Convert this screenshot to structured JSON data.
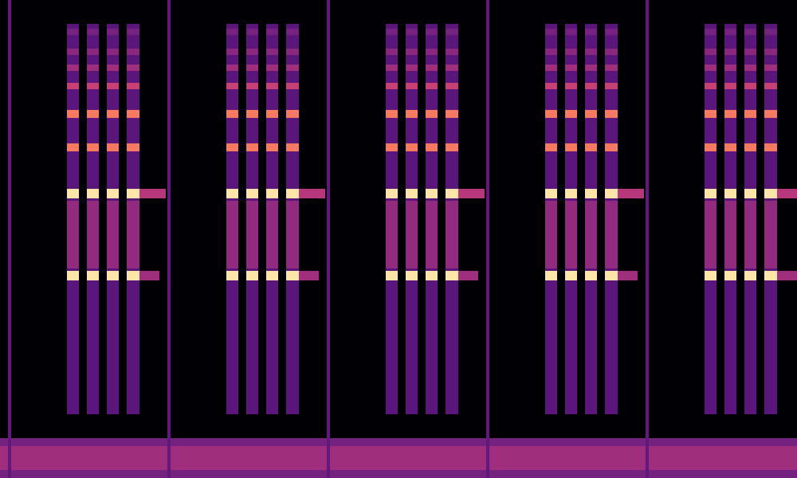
{
  "chart_data": {
    "type": "heatmap",
    "xlim": [
      0,
      1000
    ],
    "ylim": [
      0,
      600
    ],
    "zlim": [
      0,
      1
    ],
    "tick_labels": false,
    "grid": false,
    "cells": [
      [
        0,
        1000,
        0,
        50,
        0.35
      ],
      [
        0,
        1000,
        10,
        40,
        0.45
      ],
      [
        10,
        14,
        0,
        600,
        0.3
      ],
      [
        210,
        214,
        0,
        600,
        0.3
      ],
      [
        410,
        414,
        0,
        600,
        0.3
      ],
      [
        610,
        614,
        0,
        600,
        0.3
      ],
      [
        810,
        814,
        0,
        600,
        0.3
      ],
      [
        84,
        99,
        80,
        570,
        0.28
      ],
      [
        84,
        99,
        263,
        348,
        0.42
      ],
      [
        84,
        99,
        556,
        564,
        0.35
      ],
      [
        84,
        99,
        531,
        539,
        0.4
      ],
      [
        84,
        99,
        511,
        519,
        0.45
      ],
      [
        84,
        99,
        488,
        496,
        0.55
      ],
      [
        84,
        99,
        452,
        462,
        0.72
      ],
      [
        84,
        99,
        410,
        420,
        0.72
      ],
      [
        84,
        99,
        351,
        363,
        0.95
      ],
      [
        84,
        99,
        248,
        260,
        0.95
      ],
      [
        109,
        124,
        80,
        570,
        0.28
      ],
      [
        109,
        124,
        263,
        348,
        0.42
      ],
      [
        109,
        124,
        556,
        564,
        0.35
      ],
      [
        109,
        124,
        531,
        539,
        0.4
      ],
      [
        109,
        124,
        511,
        519,
        0.45
      ],
      [
        109,
        124,
        488,
        496,
        0.55
      ],
      [
        109,
        124,
        452,
        462,
        0.72
      ],
      [
        109,
        124,
        410,
        420,
        0.72
      ],
      [
        109,
        124,
        351,
        363,
        0.95
      ],
      [
        109,
        124,
        248,
        260,
        0.95
      ],
      [
        134,
        149,
        80,
        570,
        0.28
      ],
      [
        134,
        149,
        263,
        348,
        0.42
      ],
      [
        134,
        149,
        556,
        564,
        0.35
      ],
      [
        134,
        149,
        531,
        539,
        0.4
      ],
      [
        134,
        149,
        511,
        519,
        0.45
      ],
      [
        134,
        149,
        488,
        496,
        0.55
      ],
      [
        134,
        149,
        452,
        462,
        0.72
      ],
      [
        134,
        149,
        410,
        420,
        0.72
      ],
      [
        134,
        149,
        351,
        363,
        0.95
      ],
      [
        134,
        149,
        248,
        260,
        0.95
      ],
      [
        159,
        175,
        80,
        570,
        0.28
      ],
      [
        159,
        175,
        263,
        348,
        0.42
      ],
      [
        159,
        175,
        556,
        564,
        0.35
      ],
      [
        159,
        175,
        531,
        539,
        0.4
      ],
      [
        159,
        175,
        511,
        519,
        0.45
      ],
      [
        159,
        175,
        488,
        496,
        0.55
      ],
      [
        159,
        175,
        452,
        462,
        0.72
      ],
      [
        159,
        175,
        410,
        420,
        0.72
      ],
      [
        159,
        175,
        351,
        363,
        0.95
      ],
      [
        159,
        175,
        248,
        260,
        0.95
      ],
      [
        175,
        208,
        351,
        363,
        0.5
      ],
      [
        175,
        200,
        248,
        260,
        0.45
      ],
      [
        284,
        299,
        80,
        570,
        0.28
      ],
      [
        284,
        299,
        263,
        348,
        0.42
      ],
      [
        284,
        299,
        556,
        564,
        0.35
      ],
      [
        284,
        299,
        531,
        539,
        0.4
      ],
      [
        284,
        299,
        511,
        519,
        0.45
      ],
      [
        284,
        299,
        488,
        496,
        0.55
      ],
      [
        284,
        299,
        452,
        462,
        0.72
      ],
      [
        284,
        299,
        410,
        420,
        0.72
      ],
      [
        284,
        299,
        351,
        363,
        0.95
      ],
      [
        284,
        299,
        248,
        260,
        0.95
      ],
      [
        309,
        324,
        80,
        570,
        0.28
      ],
      [
        309,
        324,
        263,
        348,
        0.42
      ],
      [
        309,
        324,
        556,
        564,
        0.35
      ],
      [
        309,
        324,
        531,
        539,
        0.4
      ],
      [
        309,
        324,
        511,
        519,
        0.45
      ],
      [
        309,
        324,
        488,
        496,
        0.55
      ],
      [
        309,
        324,
        452,
        462,
        0.72
      ],
      [
        309,
        324,
        410,
        420,
        0.72
      ],
      [
        309,
        324,
        351,
        363,
        0.95
      ],
      [
        309,
        324,
        248,
        260,
        0.95
      ],
      [
        334,
        349,
        80,
        570,
        0.28
      ],
      [
        334,
        349,
        263,
        348,
        0.42
      ],
      [
        334,
        349,
        556,
        564,
        0.35
      ],
      [
        334,
        349,
        531,
        539,
        0.4
      ],
      [
        334,
        349,
        511,
        519,
        0.45
      ],
      [
        334,
        349,
        488,
        496,
        0.55
      ],
      [
        334,
        349,
        452,
        462,
        0.72
      ],
      [
        334,
        349,
        410,
        420,
        0.72
      ],
      [
        334,
        349,
        351,
        363,
        0.95
      ],
      [
        334,
        349,
        248,
        260,
        0.95
      ],
      [
        359,
        375,
        80,
        570,
        0.28
      ],
      [
        359,
        375,
        263,
        348,
        0.42
      ],
      [
        359,
        375,
        556,
        564,
        0.35
      ],
      [
        359,
        375,
        531,
        539,
        0.4
      ],
      [
        359,
        375,
        511,
        519,
        0.45
      ],
      [
        359,
        375,
        488,
        496,
        0.55
      ],
      [
        359,
        375,
        452,
        462,
        0.72
      ],
      [
        359,
        375,
        410,
        420,
        0.72
      ],
      [
        359,
        375,
        351,
        363,
        0.95
      ],
      [
        359,
        375,
        248,
        260,
        0.95
      ],
      [
        375,
        408,
        351,
        363,
        0.5
      ],
      [
        375,
        400,
        248,
        260,
        0.45
      ],
      [
        484,
        499,
        80,
        570,
        0.28
      ],
      [
        484,
        499,
        263,
        348,
        0.42
      ],
      [
        484,
        499,
        556,
        564,
        0.35
      ],
      [
        484,
        499,
        531,
        539,
        0.4
      ],
      [
        484,
        499,
        511,
        519,
        0.45
      ],
      [
        484,
        499,
        488,
        496,
        0.55
      ],
      [
        484,
        499,
        452,
        462,
        0.72
      ],
      [
        484,
        499,
        410,
        420,
        0.72
      ],
      [
        484,
        499,
        351,
        363,
        0.95
      ],
      [
        484,
        499,
        248,
        260,
        0.95
      ],
      [
        509,
        524,
        80,
        570,
        0.28
      ],
      [
        509,
        524,
        263,
        348,
        0.42
      ],
      [
        509,
        524,
        556,
        564,
        0.35
      ],
      [
        509,
        524,
        531,
        539,
        0.4
      ],
      [
        509,
        524,
        511,
        519,
        0.45
      ],
      [
        509,
        524,
        488,
        496,
        0.55
      ],
      [
        509,
        524,
        452,
        462,
        0.72
      ],
      [
        509,
        524,
        410,
        420,
        0.72
      ],
      [
        509,
        524,
        351,
        363,
        0.95
      ],
      [
        509,
        524,
        248,
        260,
        0.95
      ],
      [
        534,
        549,
        80,
        570,
        0.28
      ],
      [
        534,
        549,
        263,
        348,
        0.42
      ],
      [
        534,
        549,
        556,
        564,
        0.35
      ],
      [
        534,
        549,
        531,
        539,
        0.4
      ],
      [
        534,
        549,
        511,
        519,
        0.45
      ],
      [
        534,
        549,
        488,
        496,
        0.55
      ],
      [
        534,
        549,
        452,
        462,
        0.72
      ],
      [
        534,
        549,
        410,
        420,
        0.72
      ],
      [
        534,
        549,
        351,
        363,
        0.95
      ],
      [
        534,
        549,
        248,
        260,
        0.95
      ],
      [
        559,
        575,
        80,
        570,
        0.28
      ],
      [
        559,
        575,
        263,
        348,
        0.42
      ],
      [
        559,
        575,
        556,
        564,
        0.35
      ],
      [
        559,
        575,
        531,
        539,
        0.4
      ],
      [
        559,
        575,
        511,
        519,
        0.45
      ],
      [
        559,
        575,
        488,
        496,
        0.55
      ],
      [
        559,
        575,
        452,
        462,
        0.72
      ],
      [
        559,
        575,
        410,
        420,
        0.72
      ],
      [
        559,
        575,
        351,
        363,
        0.95
      ],
      [
        559,
        575,
        248,
        260,
        0.95
      ],
      [
        575,
        608,
        351,
        363,
        0.5
      ],
      [
        575,
        600,
        248,
        260,
        0.45
      ],
      [
        684,
        699,
        80,
        570,
        0.28
      ],
      [
        684,
        699,
        263,
        348,
        0.42
      ],
      [
        684,
        699,
        556,
        564,
        0.35
      ],
      [
        684,
        699,
        531,
        539,
        0.4
      ],
      [
        684,
        699,
        511,
        519,
        0.45
      ],
      [
        684,
        699,
        488,
        496,
        0.55
      ],
      [
        684,
        699,
        452,
        462,
        0.72
      ],
      [
        684,
        699,
        410,
        420,
        0.72
      ],
      [
        684,
        699,
        351,
        363,
        0.95
      ],
      [
        684,
        699,
        248,
        260,
        0.95
      ],
      [
        709,
        724,
        80,
        570,
        0.28
      ],
      [
        709,
        724,
        263,
        348,
        0.42
      ],
      [
        709,
        724,
        556,
        564,
        0.35
      ],
      [
        709,
        724,
        531,
        539,
        0.4
      ],
      [
        709,
        724,
        511,
        519,
        0.45
      ],
      [
        709,
        724,
        488,
        496,
        0.55
      ],
      [
        709,
        724,
        452,
        462,
        0.72
      ],
      [
        709,
        724,
        410,
        420,
        0.72
      ],
      [
        709,
        724,
        351,
        363,
        0.95
      ],
      [
        709,
        724,
        248,
        260,
        0.95
      ],
      [
        734,
        749,
        80,
        570,
        0.28
      ],
      [
        734,
        749,
        263,
        348,
        0.42
      ],
      [
        734,
        749,
        556,
        564,
        0.35
      ],
      [
        734,
        749,
        531,
        539,
        0.4
      ],
      [
        734,
        749,
        511,
        519,
        0.45
      ],
      [
        734,
        749,
        488,
        496,
        0.55
      ],
      [
        734,
        749,
        452,
        462,
        0.72
      ],
      [
        734,
        749,
        410,
        420,
        0.72
      ],
      [
        734,
        749,
        351,
        363,
        0.95
      ],
      [
        734,
        749,
        248,
        260,
        0.95
      ],
      [
        759,
        775,
        80,
        570,
        0.28
      ],
      [
        759,
        775,
        263,
        348,
        0.42
      ],
      [
        759,
        775,
        556,
        564,
        0.35
      ],
      [
        759,
        775,
        531,
        539,
        0.4
      ],
      [
        759,
        775,
        511,
        519,
        0.45
      ],
      [
        759,
        775,
        488,
        496,
        0.55
      ],
      [
        759,
        775,
        452,
        462,
        0.72
      ],
      [
        759,
        775,
        410,
        420,
        0.72
      ],
      [
        759,
        775,
        351,
        363,
        0.95
      ],
      [
        759,
        775,
        248,
        260,
        0.95
      ],
      [
        775,
        808,
        351,
        363,
        0.5
      ],
      [
        775,
        800,
        248,
        260,
        0.45
      ],
      [
        884,
        899,
        80,
        570,
        0.28
      ],
      [
        884,
        899,
        263,
        348,
        0.42
      ],
      [
        884,
        899,
        556,
        564,
        0.35
      ],
      [
        884,
        899,
        531,
        539,
        0.4
      ],
      [
        884,
        899,
        511,
        519,
        0.45
      ],
      [
        884,
        899,
        488,
        496,
        0.55
      ],
      [
        884,
        899,
        452,
        462,
        0.72
      ],
      [
        884,
        899,
        410,
        420,
        0.72
      ],
      [
        884,
        899,
        351,
        363,
        0.95
      ],
      [
        884,
        899,
        248,
        260,
        0.95
      ],
      [
        909,
        924,
        80,
        570,
        0.28
      ],
      [
        909,
        924,
        263,
        348,
        0.42
      ],
      [
        909,
        924,
        556,
        564,
        0.35
      ],
      [
        909,
        924,
        531,
        539,
        0.4
      ],
      [
        909,
        924,
        511,
        519,
        0.45
      ],
      [
        909,
        924,
        488,
        496,
        0.55
      ],
      [
        909,
        924,
        452,
        462,
        0.72
      ],
      [
        909,
        924,
        410,
        420,
        0.72
      ],
      [
        909,
        924,
        351,
        363,
        0.95
      ],
      [
        909,
        924,
        248,
        260,
        0.95
      ],
      [
        934,
        949,
        80,
        570,
        0.28
      ],
      [
        934,
        949,
        263,
        348,
        0.42
      ],
      [
        934,
        949,
        556,
        564,
        0.35
      ],
      [
        934,
        949,
        531,
        539,
        0.4
      ],
      [
        934,
        949,
        511,
        519,
        0.45
      ],
      [
        934,
        949,
        488,
        496,
        0.55
      ],
      [
        934,
        949,
        452,
        462,
        0.72
      ],
      [
        934,
        949,
        410,
        420,
        0.72
      ],
      [
        934,
        949,
        351,
        363,
        0.95
      ],
      [
        934,
        949,
        248,
        260,
        0.95
      ],
      [
        959,
        975,
        80,
        570,
        0.28
      ],
      [
        959,
        975,
        263,
        348,
        0.42
      ],
      [
        959,
        975,
        556,
        564,
        0.35
      ],
      [
        959,
        975,
        531,
        539,
        0.4
      ],
      [
        959,
        975,
        511,
        519,
        0.45
      ],
      [
        959,
        975,
        488,
        496,
        0.55
      ],
      [
        959,
        975,
        452,
        462,
        0.72
      ],
      [
        959,
        975,
        410,
        420,
        0.72
      ],
      [
        959,
        975,
        351,
        363,
        0.95
      ],
      [
        959,
        975,
        248,
        260,
        0.95
      ],
      [
        975,
        1000,
        351,
        363,
        0.5
      ],
      [
        975,
        1000,
        248,
        260,
        0.45
      ]
    ]
  }
}
